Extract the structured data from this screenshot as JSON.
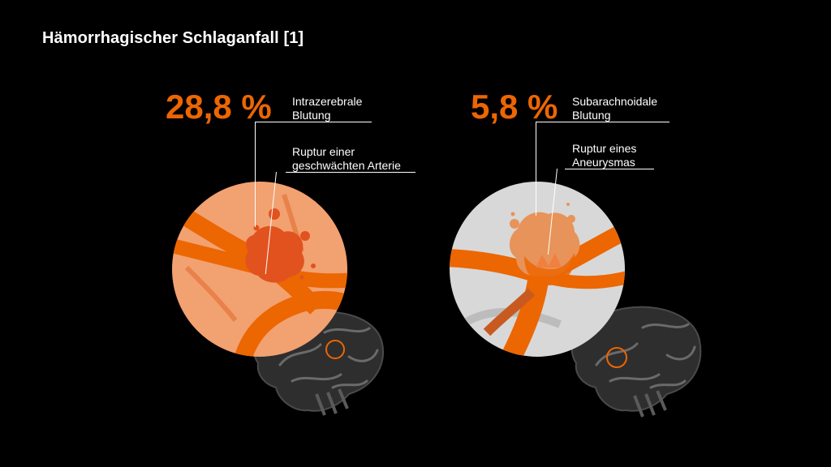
{
  "title": "Hämorrhagischer Schlaganfall [1]",
  "colors": {
    "accent": "#ec6602",
    "background": "#000000"
  },
  "panels": [
    {
      "percent": "28,8 %",
      "type_line1": "Intrazerebrale",
      "type_line2": "Blutung",
      "cause_line1": "Ruptur einer",
      "cause_line2": "geschwächten Arterie"
    },
    {
      "percent": "5,8 %",
      "type_line1": "Subarachnoidale",
      "type_line2": "Blutung",
      "cause_line1": "Ruptur eines",
      "cause_line2": "Aneurysmas"
    }
  ]
}
